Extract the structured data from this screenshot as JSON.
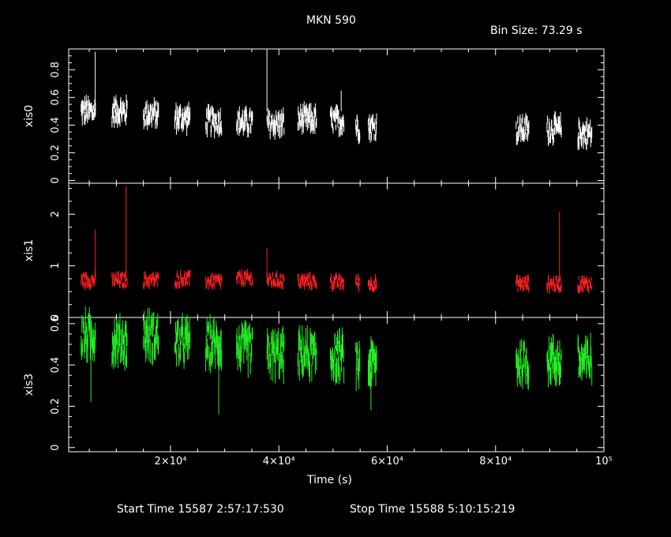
{
  "title": "MKN 590",
  "bin_size_label": "Bin Size: 73.29 s",
  "start_time_label": "Start Time 15587  2:57:17:530",
  "stop_time_label": "Stop Time 15588  5:10:15:219",
  "colors": {
    "xis0": "#ffffff",
    "xis1": "#ff2020",
    "xis3": "#22ee22",
    "axes": "#ffffff"
  },
  "chart_data": {
    "type": "scatter",
    "xlabel": "Time (s)",
    "xlim": [
      1200,
      100000
    ],
    "x_ticks": [
      {
        "value": 20000,
        "label": "2×10⁴"
      },
      {
        "value": 40000,
        "label": "4×10⁴"
      },
      {
        "value": 60000,
        "label": "6×10⁴"
      },
      {
        "value": 80000,
        "label": "8×10⁴"
      },
      {
        "value": 100000,
        "label": "10⁵"
      }
    ],
    "segments": [
      {
        "start": 3500,
        "end": 6200
      },
      {
        "start": 9200,
        "end": 12000
      },
      {
        "start": 15000,
        "end": 17800
      },
      {
        "start": 20800,
        "end": 23600
      },
      {
        "start": 26500,
        "end": 29500
      },
      {
        "start": 32200,
        "end": 35200
      },
      {
        "start": 37800,
        "end": 41000
      },
      {
        "start": 43500,
        "end": 47000
      },
      {
        "start": 49500,
        "end": 52000
      },
      {
        "start": 54200,
        "end": 55000
      },
      {
        "start": 56500,
        "end": 58100
      },
      {
        "start": 83800,
        "end": 86200
      },
      {
        "start": 89500,
        "end": 92200
      },
      {
        "start": 95200,
        "end": 97800
      }
    ],
    "panels": [
      {
        "ylabel": "xis0",
        "ylim": [
          -0.02,
          0.95
        ],
        "yticks": [
          0,
          0.2,
          0.4,
          0.6,
          0.8
        ],
        "ytick_labels": [
          "0",
          "0.2",
          "0.4",
          "0.6",
          "0.8"
        ],
        "series_key": "xis0",
        "levels": [
          0.5,
          0.5,
          0.48,
          0.45,
          0.43,
          0.42,
          0.41,
          0.44,
          0.43,
          0.39,
          0.39,
          0.37,
          0.37,
          0.34
        ],
        "amplitude": 0.08,
        "spikes": [
          {
            "x": 6100,
            "y": 0.93
          },
          {
            "x": 37800,
            "y": 0.95
          },
          {
            "x": 51500,
            "y": 0.65
          }
        ]
      },
      {
        "ylabel": "xis1",
        "ylim": [
          0,
          2.6
        ],
        "yticks": [
          0,
          1,
          2
        ],
        "ytick_labels": [
          "0",
          "1",
          "2"
        ],
        "series_key": "xis1",
        "levels": [
          0.72,
          0.72,
          0.72,
          0.74,
          0.7,
          0.75,
          0.72,
          0.7,
          0.68,
          0.68,
          0.66,
          0.65,
          0.65,
          0.65
        ],
        "amplitude": 0.12,
        "spikes": [
          {
            "x": 6100,
            "y": 1.7
          },
          {
            "x": 11800,
            "y": 2.55
          },
          {
            "x": 91800,
            "y": 2.05
          },
          {
            "x": 37800,
            "y": 1.35
          }
        ]
      },
      {
        "ylabel": "xis3",
        "ylim": [
          -0.02,
          0.63
        ],
        "yticks": [
          0,
          0.2,
          0.4,
          0.6
        ],
        "ytick_labels": [
          "0",
          "0.2",
          "0.4",
          "0.6"
        ],
        "series_key": "xis3",
        "levels": [
          0.54,
          0.51,
          0.54,
          0.51,
          0.5,
          0.48,
          0.45,
          0.45,
          0.44,
          0.4,
          0.4,
          0.41,
          0.42,
          0.42
        ],
        "amplitude": 0.09,
        "spikes": [
          {
            "x": 5300,
            "y": 0.22
          },
          {
            "x": 28900,
            "y": 0.16
          },
          {
            "x": 57000,
            "y": 0.18
          }
        ]
      }
    ]
  }
}
